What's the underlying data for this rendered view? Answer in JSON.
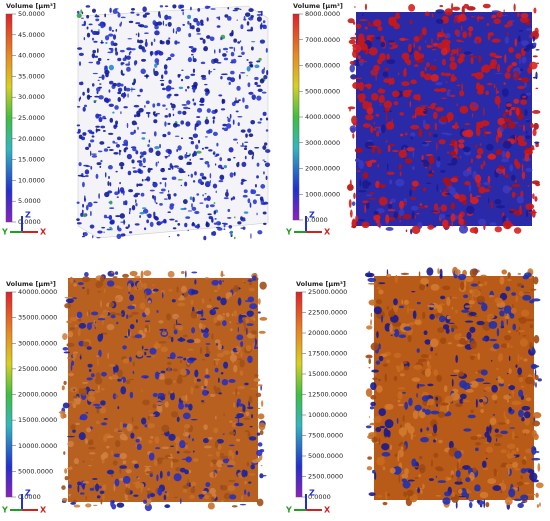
{
  "panels": [
    {
      "colorbar_title": "Volume [μm³]",
      "ticks": [
        "50.0000",
        "45.0000",
        "40.0000",
        "35.0000",
        "30.0000",
        "25.0000",
        "20.0000",
        "15.0000",
        "10.0000",
        "5.0000",
        "0.0000"
      ],
      "axes": [
        "Y",
        "Z",
        "X"
      ]
    },
    {
      "colorbar_title": "Volume [μm³]",
      "ticks": [
        "8000.0000",
        "7000.0000",
        "6000.0000",
        "5000.0000",
        "4000.0000",
        "3000.0000",
        "2000.0000",
        "1000.0000",
        "0.0000"
      ],
      "axes": [
        "Y",
        "Z",
        "X"
      ]
    },
    {
      "colorbar_title": "Volume [μm³]",
      "ticks": [
        "40000.0000",
        "35000.0000",
        "30000.0000",
        "25000.0000",
        "20000.0000",
        "15000.0000",
        "10000.0000",
        "5000.0000",
        "0.0000"
      ],
      "axes": [
        "Y",
        "Z",
        "X"
      ]
    },
    {
      "colorbar_title": "Volume [μm³]",
      "ticks": [
        "25000.0000",
        "22500.0000",
        "20000.0000",
        "17500.0000",
        "15000.0000",
        "12500.0000",
        "10000.0000",
        "7500.0000",
        "5000.0000",
        "2500.0000",
        "0.0000"
      ],
      "axes": [
        "Y",
        "Z",
        "X"
      ]
    }
  ]
}
